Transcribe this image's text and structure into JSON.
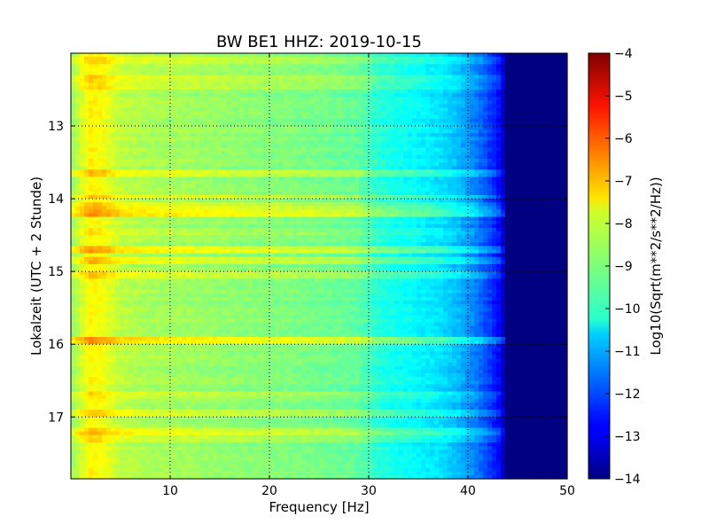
{
  "chart_data": {
    "type": "heatmap",
    "title": "BW BE1 HHZ: 2019-10-15",
    "xlabel": "Frequency [Hz]",
    "ylabel": "Lokalzeit (UTC + 2 Stunde)",
    "xlim": [
      0,
      50
    ],
    "ylim": [
      12.0,
      17.85
    ],
    "y_inverted": true,
    "x_ticks": [
      10,
      20,
      30,
      40,
      50
    ],
    "x_tick_labels": [
      "10",
      "20",
      "30",
      "40",
      "50"
    ],
    "y_ticks": [
      13,
      14,
      15,
      16,
      17
    ],
    "y_tick_labels": [
      "13",
      "14",
      "15",
      "16",
      "17"
    ],
    "grid": true,
    "colormap": "jet",
    "colorbar": {
      "label": "Log10(Sqrt(m**2/s**2/Hz))",
      "min": -14,
      "max": -4,
      "ticks": [
        -4,
        -5,
        -6,
        -7,
        -8,
        -9,
        -10,
        -11,
        -12,
        -13,
        -14
      ],
      "tick_labels": [
        "−4",
        "−5",
        "−6",
        "−7",
        "−8",
        "−9",
        "−10",
        "−11",
        "−12",
        "−13",
        "−14"
      ]
    },
    "spectrum_profile": {
      "frequency_hz": [
        0,
        1,
        2,
        3,
        5,
        8,
        12,
        18,
        25,
        29,
        31,
        34,
        37,
        39,
        41,
        43,
        44,
        50
      ],
      "log10_amplitude": [
        -8.8,
        -8.2,
        -7.7,
        -7.8,
        -8.4,
        -8.6,
        -8.7,
        -8.9,
        -9.1,
        -9.3,
        -9.9,
        -10.2,
        -10.5,
        -10.9,
        -11.6,
        -12.6,
        -14,
        -14
      ]
    },
    "event_bands": [
      {
        "hour": 12.1,
        "log10_amplitude_shift": 0.4
      },
      {
        "hour": 12.35,
        "log10_amplitude_shift": 0.4
      },
      {
        "hour": 12.45,
        "log10_amplitude_shift": 0.3
      },
      {
        "hour": 13.65,
        "log10_amplitude_shift": 0.7
      },
      {
        "hour": 13.98,
        "log10_amplitude_shift": 0.6
      },
      {
        "hour": 14.1,
        "log10_amplitude_shift": 0.7
      },
      {
        "hour": 14.2,
        "log10_amplitude_shift": 1.0
      },
      {
        "hour": 14.45,
        "log10_amplitude_shift": 0.3
      },
      {
        "hour": 14.7,
        "log10_amplitude_shift": 0.9
      },
      {
        "hour": 14.85,
        "log10_amplitude_shift": 0.6
      },
      {
        "hour": 15.05,
        "log10_amplitude_shift": 0.6
      },
      {
        "hour": 15.95,
        "log10_amplitude_shift": 1.0
      },
      {
        "hour": 16.7,
        "log10_amplitude_shift": 0.3
      },
      {
        "hour": 16.95,
        "log10_amplitude_shift": 0.5
      },
      {
        "hour": 17.2,
        "log10_amplitude_shift": 0.7
      },
      {
        "hour": 17.3,
        "log10_amplitude_shift": 0.4
      }
    ]
  }
}
